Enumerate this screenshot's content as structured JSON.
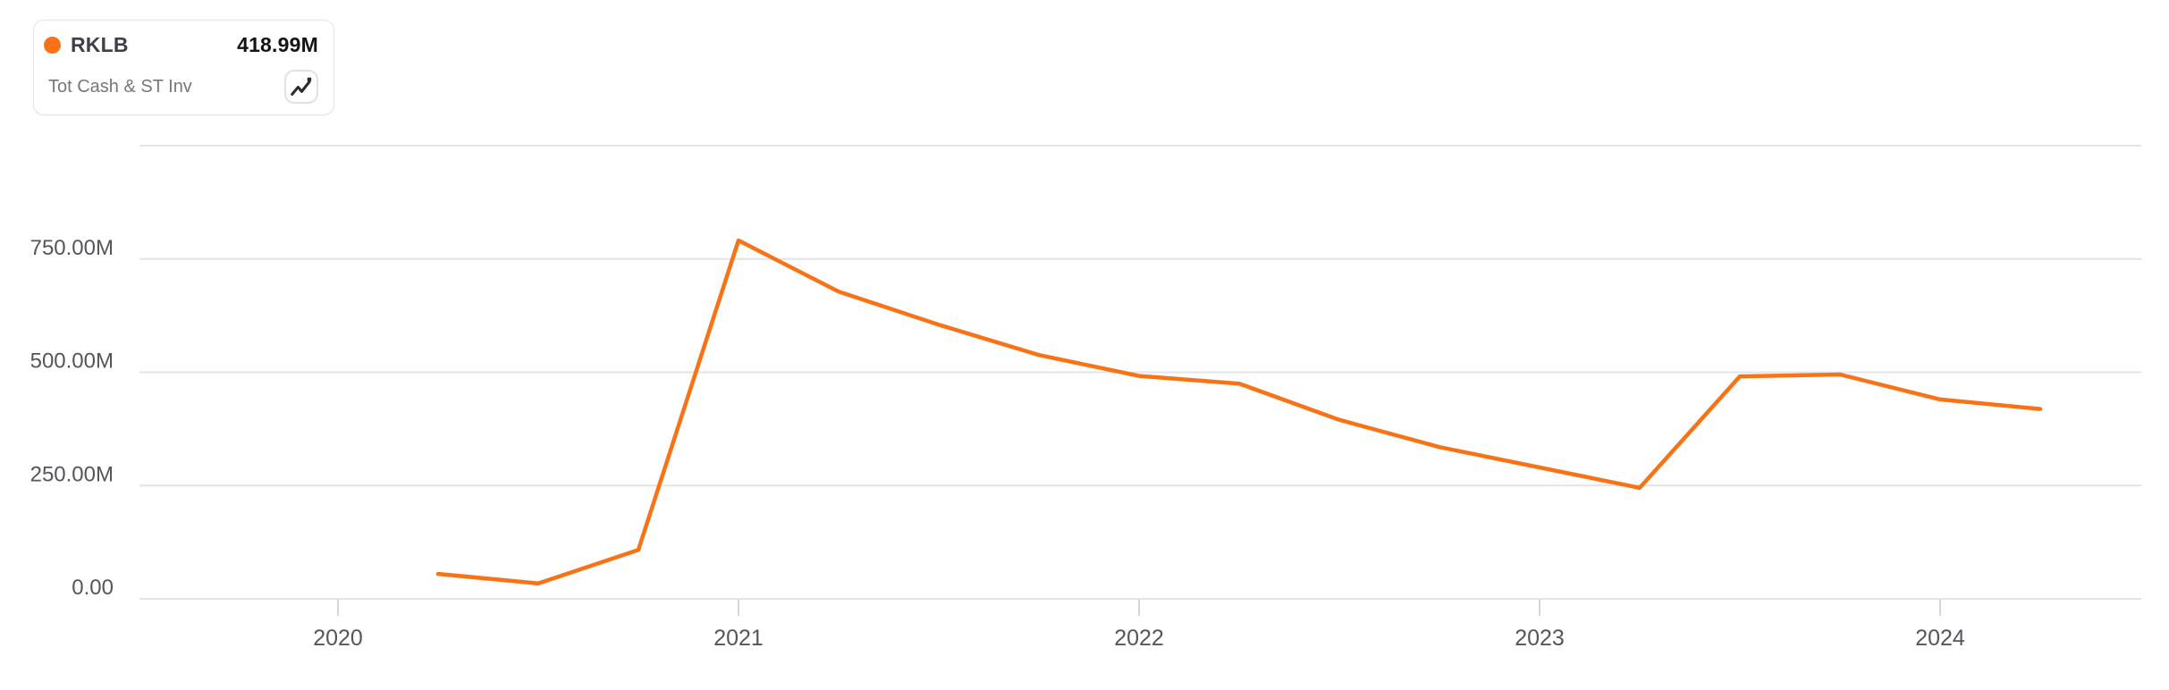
{
  "legend": {
    "ticker": "RKLB",
    "value": "418.99M",
    "metric": "Tot Cash & ST Inv",
    "series_color": "#F97316"
  },
  "chart_data": {
    "type": "line",
    "title": "RKLB — Tot Cash & ST Inv",
    "unit": "USD",
    "legend_position": "top-left",
    "grid": "horizontal",
    "line_color": "#F97316",
    "ylim": [
      0,
      1000000000
    ],
    "y_ticks": [
      {
        "value": 0,
        "label": "0.00"
      },
      {
        "value": 250,
        "label": "250.00M"
      },
      {
        "value": 500,
        "label": "500.00M"
      },
      {
        "value": 750,
        "label": "750.00M"
      },
      {
        "value": 1000,
        "label": ""
      }
    ],
    "x_ticks": [
      {
        "year": 2020,
        "label": "2020"
      },
      {
        "year": 2021,
        "label": "2021"
      },
      {
        "year": 2022,
        "label": "2022"
      },
      {
        "year": 2023,
        "label": "2023"
      },
      {
        "year": 2024,
        "label": "2024"
      }
    ],
    "categories": [
      "Q1 2020",
      "Q2 2020",
      "Q3 2020",
      "Q4 2020",
      "Q1 2021",
      "Q2 2021",
      "Q3 2021",
      "Q4 2021",
      "Q1 2022",
      "Q2 2022",
      "Q3 2022",
      "Q4 2022",
      "Q1 2023",
      "Q2 2023",
      "Q3 2023",
      "Q4 2023",
      "Q1 2024"
    ],
    "x_numeric": [
      2020.25,
      2020.5,
      2020.75,
      2021.0,
      2021.25,
      2021.5,
      2021.75,
      2022.0,
      2022.25,
      2022.5,
      2022.75,
      2023.0,
      2023.25,
      2023.5,
      2023.75,
      2024.0,
      2024.25
    ],
    "series": [
      {
        "name": "RKLB Tot Cash & ST Inv",
        "values_millions": [
          55,
          34,
          108,
          791,
          678,
          605,
          538,
          492,
          475,
          395,
          335,
          290,
          245,
          491,
          495,
          440,
          418.99
        ]
      }
    ],
    "latest_value_label": "418.99M"
  }
}
